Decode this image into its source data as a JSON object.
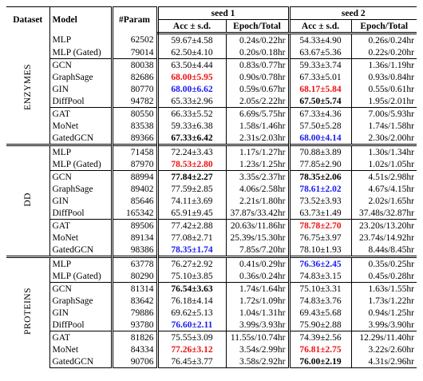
{
  "header": {
    "columns": [
      "Dataset",
      "Model",
      "#Param"
    ],
    "seeds": [
      "seed 1",
      "seed 2"
    ],
    "subcolumns": [
      "Acc ± s.d.",
      "Epoch/Total"
    ]
  },
  "groups": [
    {
      "dataset": "ENZYMES",
      "rows": [
        {
          "model": "MLP",
          "params": 62502,
          "seeds": [
            {
              "acc": "59.67±4.58",
              "time": "0.24s/0.22hr"
            },
            {
              "acc": "54.33±4.90",
              "time": "0.26s/0.24hr"
            }
          ]
        },
        {
          "model": "MLP (Gated)",
          "params": 79014,
          "seeds": [
            {
              "acc": "62.50±4.10",
              "time": "0.20s/0.18hr"
            },
            {
              "acc": "63.67±5.36",
              "time": "0.22s/0.20hr"
            }
          ]
        },
        {
          "model": "GCN",
          "params": 80038,
          "seeds": [
            {
              "acc": "63.50±4.44",
              "time": "0.83s/0.77hr"
            },
            {
              "acc": "59.33±3.74",
              "time": "1.36s/1.19hr"
            }
          ]
        },
        {
          "model": "GraphSage",
          "params": 82686,
          "seeds": [
            {
              "acc": "68.00±5.95",
              "time": "0.90s/0.78hr",
              "bold": true,
              "color": "#ee1111"
            },
            {
              "acc": "67.33±5.01",
              "time": "0.93s/0.84hr"
            }
          ]
        },
        {
          "model": "GIN",
          "params": 80770,
          "seeds": [
            {
              "acc": "68.00±6.62",
              "time": "0.59s/0.67hr",
              "bold": true,
              "color": "#1a1af0"
            },
            {
              "acc": "68.17±5.84",
              "time": "0.55s/0.61hr",
              "bold": true,
              "color": "#ee1111"
            }
          ]
        },
        {
          "model": "DiffPool",
          "params": 94782,
          "seeds": [
            {
              "acc": "65.33±2.96",
              "time": "2.05s/2.22hr"
            },
            {
              "acc": "67.50±5.74",
              "time": "1.95s/2.01hr",
              "bold": true
            }
          ]
        },
        {
          "model": "GAT",
          "params": 80550,
          "seeds": [
            {
              "acc": "66.33±5.52",
              "time": "6.69s/5.75hr"
            },
            {
              "acc": "67.33±4.36",
              "time": "7.00s/5.93hr"
            }
          ]
        },
        {
          "model": "MoNet",
          "params": 83538,
          "seeds": [
            {
              "acc": "59.33±6.38",
              "time": "1.58s/1.46hr"
            },
            {
              "acc": "57.50±5.28",
              "time": "1.74s/1.58hr"
            }
          ]
        },
        {
          "model": "GatedGCN",
          "params": 89366,
          "seeds": [
            {
              "acc": "67.33±6.42",
              "time": "2.31s/2.03hr",
              "bold": true
            },
            {
              "acc": "68.00±4.14",
              "time": "2.30s/2.00hr",
              "bold": true,
              "color": "#1a1af0"
            }
          ]
        }
      ]
    },
    {
      "dataset": "DD",
      "rows": [
        {
          "model": "MLP",
          "params": 71458,
          "seeds": [
            {
              "acc": "72.24±3.43",
              "time": "1.17s/1.27hr"
            },
            {
              "acc": "70.88±3.89",
              "time": "1.30s/1.34hr"
            }
          ]
        },
        {
          "model": "MLP (Gated)",
          "params": 87970,
          "seeds": [
            {
              "acc": "78.53±2.80",
              "time": "1.23s/1.25hr",
              "bold": true,
              "color": "#ee1111"
            },
            {
              "acc": "77.85±2.90",
              "time": "1.02s/1.05hr"
            }
          ]
        },
        {
          "model": "GCN",
          "params": 88994,
          "seeds": [
            {
              "acc": "77.84±2.27",
              "time": "3.35s/2.37hr",
              "bold": true
            },
            {
              "acc": "78.35±2.06",
              "time": "4.51s/2.98hr",
              "bold": true
            }
          ]
        },
        {
          "model": "GraphSage",
          "params": 89402,
          "seeds": [
            {
              "acc": "77.59±2.85",
              "time": "4.06s/2.58hr"
            },
            {
              "acc": "78.61±2.02",
              "time": "4.67s/4.15hr",
              "bold": true,
              "color": "#1a1af0"
            }
          ]
        },
        {
          "model": "GIN",
          "params": 85646,
          "seeds": [
            {
              "acc": "74.11±3.69",
              "time": "2.21s/1.80hr"
            },
            {
              "acc": "73.52±3.93",
              "time": "2.02s/1.65hr"
            }
          ]
        },
        {
          "model": "DiffPool",
          "params": 165342,
          "seeds": [
            {
              "acc": "65.91±9.45",
              "time": "37.87s/33.42hr"
            },
            {
              "acc": "63.73±1.49",
              "time": "37.48s/32.87hr"
            }
          ]
        },
        {
          "model": "GAT",
          "params": 89506,
          "seeds": [
            {
              "acc": "77.42±2.88",
              "time": "20.63s/11.86hr"
            },
            {
              "acc": "78.78±2.70",
              "time": "23.20s/13.20hr",
              "bold": true,
              "color": "#ee1111"
            }
          ]
        },
        {
          "model": "MoNet",
          "params": 89134,
          "seeds": [
            {
              "acc": "77.08±2.71",
              "time": "25.39s/15.30hr"
            },
            {
              "acc": "76.75±3.97",
              "time": "23.74s/14.92hr"
            }
          ]
        },
        {
          "model": "GatedGCN",
          "params": 98386,
          "seeds": [
            {
              "acc": "78.35±1.74",
              "time": "7.85s/7.20hr",
              "bold": true,
              "color": "#1a1af0"
            },
            {
              "acc": "78.10±1.93",
              "time": "8.44s/8.45hr"
            }
          ]
        }
      ]
    },
    {
      "dataset": "PROTEINS",
      "rows": [
        {
          "model": "MLP",
          "params": 63778,
          "seeds": [
            {
              "acc": "76.27±2.92",
              "time": "0.41s/0.29hr"
            },
            {
              "acc": "76.36±2.45",
              "time": "0.35s/0.25hr",
              "bold": true,
              "color": "#1a1af0"
            }
          ]
        },
        {
          "model": "MLP (Gated)",
          "params": 80290,
          "seeds": [
            {
              "acc": "75.10±3.85",
              "time": "0.36s/0.24hr"
            },
            {
              "acc": "74.83±3.15",
              "time": "0.45s/0.28hr"
            }
          ]
        },
        {
          "model": "GCN",
          "params": 81314,
          "seeds": [
            {
              "acc": "76.54±3.63",
              "time": "1.74s/1.64hr",
              "bold": true
            },
            {
              "acc": "75.10±3.31",
              "time": "1.63s/1.55hr"
            }
          ]
        },
        {
          "model": "GraphSage",
          "params": 83642,
          "seeds": [
            {
              "acc": "76.18±4.14",
              "time": "1.72s/1.09hr"
            },
            {
              "acc": "74.83±3.76",
              "time": "1.73s/1.22hr"
            }
          ]
        },
        {
          "model": "GIN",
          "params": 79886,
          "seeds": [
            {
              "acc": "69.62±5.13",
              "time": "1.04s/1.31hr"
            },
            {
              "acc": "69.43±5.68",
              "time": "0.94s/1.25hr"
            }
          ]
        },
        {
          "model": "DiffPool",
          "params": 93780,
          "seeds": [
            {
              "acc": "76.60±2.11",
              "time": "3.99s/3.93hr",
              "bold": true,
              "color": "#1a1af0"
            },
            {
              "acc": "75.90±2.88",
              "time": "3.99s/3.90hr"
            }
          ]
        },
        {
          "model": "GAT",
          "params": 81826,
          "seeds": [
            {
              "acc": "75.55±3.09",
              "time": "11.55s/10.74hr"
            },
            {
              "acc": "74.39±2.56",
              "time": "12.29s/11.40hr"
            }
          ]
        },
        {
          "model": "MoNet",
          "params": 84334,
          "seeds": [
            {
              "acc": "77.26±3.12",
              "time": "3.54s/2.99hr",
              "bold": true,
              "color": "#ee1111"
            },
            {
              "acc": "76.81±2.75",
              "time": "3.22s/2.60hr",
              "bold": true,
              "color": "#ee1111"
            }
          ]
        },
        {
          "model": "GatedGCN",
          "params": 90706,
          "seeds": [
            {
              "acc": "76.45±3.77",
              "time": "3.58s/2.92hr"
            },
            {
              "acc": "76.00±2.19",
              "time": "4.31s/2.96hr",
              "bold": true
            }
          ]
        }
      ]
    }
  ]
}
